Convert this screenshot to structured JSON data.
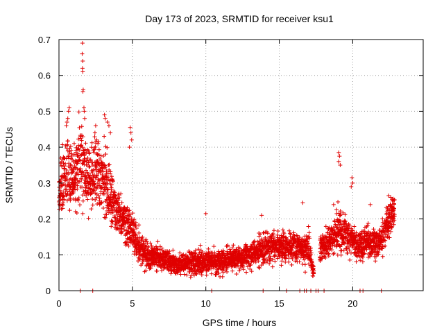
{
  "chart_data": {
    "type": "scatter",
    "title": "Day 173 of 2023, SRMTID for receiver ksu1",
    "xlabel": "GPS time / hours",
    "ylabel": "SRMTID / TECUs",
    "xlim": [
      0,
      24.8
    ],
    "ylim": [
      0,
      0.7
    ],
    "xticks": [
      0,
      5,
      10,
      15,
      20
    ],
    "yticks": [
      0,
      0.1,
      0.2,
      0.3,
      0.4,
      0.5,
      0.6,
      0.7
    ],
    "xtick_labels": [
      "0",
      "5",
      "10",
      "15",
      "20"
    ],
    "ytick_labels": [
      "0",
      "0.1",
      "0.2",
      "0.3",
      "0.4",
      "0.5",
      "0.6",
      "0.7"
    ],
    "grid": true,
    "marker": "+",
    "color": "#e00000",
    "series": [
      {
        "name": "SRMTID",
        "trend": [
          [
            0.0,
            0.26,
            0.07
          ],
          [
            0.5,
            0.33,
            0.1
          ],
          [
            1.0,
            0.3,
            0.1
          ],
          [
            1.5,
            0.38,
            0.11
          ],
          [
            2.0,
            0.3,
            0.09
          ],
          [
            2.5,
            0.33,
            0.09
          ],
          [
            3.0,
            0.32,
            0.09
          ],
          [
            3.5,
            0.27,
            0.07
          ],
          [
            4.0,
            0.22,
            0.05
          ],
          [
            4.5,
            0.19,
            0.05
          ],
          [
            5.0,
            0.17,
            0.05
          ],
          [
            5.5,
            0.12,
            0.04
          ],
          [
            6.0,
            0.1,
            0.035
          ],
          [
            7.0,
            0.09,
            0.03
          ],
          [
            8.0,
            0.07,
            0.025
          ],
          [
            9.0,
            0.08,
            0.03
          ],
          [
            10.0,
            0.08,
            0.03
          ],
          [
            11.0,
            0.08,
            0.03
          ],
          [
            12.0,
            0.09,
            0.03
          ],
          [
            13.0,
            0.1,
            0.035
          ],
          [
            14.0,
            0.12,
            0.04
          ],
          [
            15.0,
            0.12,
            0.035
          ],
          [
            16.0,
            0.12,
            0.04
          ],
          [
            17.0,
            0.12,
            0.04
          ],
          [
            17.6,
            0.0,
            0.0
          ],
          [
            17.8,
            0.12,
            0.035
          ],
          [
            18.5,
            0.14,
            0.04
          ],
          [
            19.0,
            0.17,
            0.06
          ],
          [
            19.5,
            0.16,
            0.05
          ],
          [
            20.0,
            0.14,
            0.04
          ],
          [
            20.5,
            0.12,
            0.04
          ],
          [
            21.0,
            0.14,
            0.04
          ],
          [
            21.5,
            0.13,
            0.04
          ],
          [
            22.0,
            0.14,
            0.04
          ],
          [
            22.5,
            0.2,
            0.05
          ],
          [
            22.8,
            0.22,
            0.04
          ]
        ],
        "peaks": [
          [
            1.6,
            0.69
          ],
          [
            1.58,
            0.66
          ],
          [
            1.62,
            0.64
          ],
          [
            1.6,
            0.62
          ],
          [
            1.62,
            0.61
          ],
          [
            1.65,
            0.56
          ],
          [
            1.63,
            0.555
          ],
          [
            1.7,
            0.51
          ],
          [
            1.72,
            0.5
          ],
          [
            1.75,
            0.48
          ],
          [
            0.7,
            0.51
          ],
          [
            0.65,
            0.5
          ],
          [
            0.6,
            0.48
          ],
          [
            0.55,
            0.47
          ],
          [
            0.5,
            0.46
          ],
          [
            3.1,
            0.49
          ],
          [
            3.15,
            0.48
          ],
          [
            3.3,
            0.47
          ],
          [
            3.4,
            0.46
          ],
          [
            3.5,
            0.44
          ],
          [
            4.85,
            0.455
          ],
          [
            4.9,
            0.44
          ],
          [
            4.95,
            0.42
          ],
          [
            4.8,
            0.4
          ],
          [
            2.5,
            0.46
          ],
          [
            2.45,
            0.44
          ],
          [
            2.55,
            0.42
          ],
          [
            19.05,
            0.385
          ],
          [
            19.1,
            0.375
          ],
          [
            19.05,
            0.36
          ],
          [
            19.15,
            0.35
          ],
          [
            19.95,
            0.315
          ],
          [
            20.0,
            0.3
          ],
          [
            19.9,
            0.29
          ],
          [
            10.0,
            0.215
          ],
          [
            13.8,
            0.21
          ],
          [
            16.6,
            0.245
          ],
          [
            18.7,
            0.24
          ],
          [
            22.45,
            0.265
          ],
          [
            22.6,
            0.26
          ],
          [
            22.7,
            0.25
          ],
          [
            21.2,
            0.24
          ]
        ],
        "zero_points": [
          1.45,
          2.3,
          10.4,
          13.9,
          15.5,
          16.4,
          16.7,
          16.85,
          17.15,
          17.5,
          17.65,
          18.05,
          20.5,
          20.7,
          21.95
        ]
      }
    ]
  }
}
